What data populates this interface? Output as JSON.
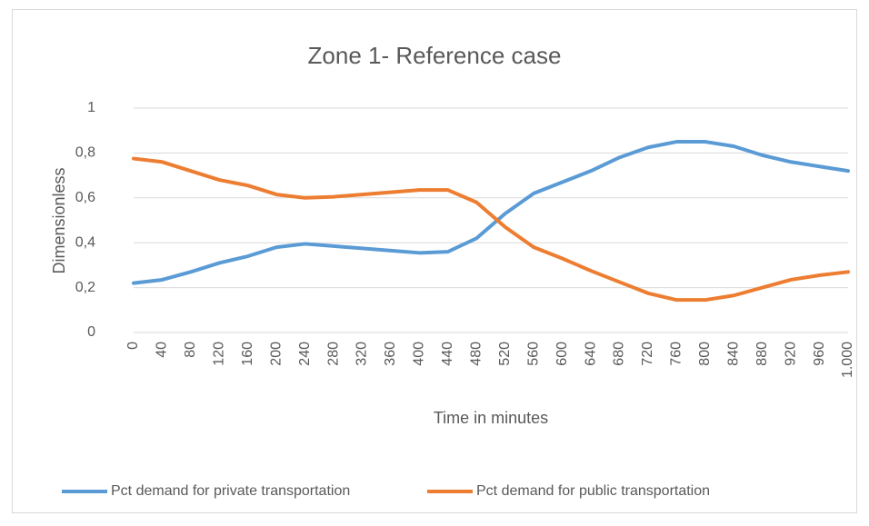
{
  "chart_data": {
    "type": "line",
    "title": "Zone 1- Reference case",
    "x_label": "Time in minutes",
    "y_label": "Dimensionless",
    "x": [
      0,
      40,
      80,
      120,
      160,
      200,
      240,
      280,
      320,
      360,
      400,
      440,
      480,
      520,
      560,
      600,
      640,
      680,
      720,
      760,
      800,
      840,
      880,
      920,
      960,
      1000
    ],
    "series": [
      {
        "name": "Pct demand for private transportation",
        "color": "#5b9bd5",
        "values": [
          0.22,
          0.235,
          0.27,
          0.31,
          0.34,
          0.38,
          0.395,
          0.385,
          0.375,
          0.365,
          0.355,
          0.36,
          0.42,
          0.53,
          0.62,
          0.67,
          0.72,
          0.78,
          0.825,
          0.85,
          0.85,
          0.83,
          0.79,
          0.76,
          0.74,
          0.72
        ]
      },
      {
        "name": "Pct demand for public transportation",
        "color": "#ed7d31",
        "values": [
          0.775,
          0.76,
          0.72,
          0.68,
          0.655,
          0.615,
          0.6,
          0.605,
          0.615,
          0.625,
          0.635,
          0.635,
          0.58,
          0.47,
          0.38,
          0.33,
          0.275,
          0.225,
          0.175,
          0.145,
          0.145,
          0.165,
          0.2,
          0.235,
          0.255,
          0.27
        ]
      }
    ],
    "xlim": [
      0,
      1000
    ],
    "xticks": [
      0,
      40,
      80,
      120,
      160,
      200,
      240,
      280,
      320,
      360,
      400,
      440,
      480,
      520,
      560,
      600,
      640,
      680,
      720,
      760,
      800,
      840,
      880,
      920,
      960,
      {
        "value": 1000,
        "label": "1.000"
      }
    ],
    "ylim": [
      0,
      1
    ],
    "yticks": [
      0,
      {
        "value": 0.2,
        "label": "0,2"
      },
      {
        "value": 0.4,
        "label": "0,4"
      },
      {
        "value": 0.6,
        "label": "0,6"
      },
      {
        "value": 0.8,
        "label": "0,8"
      },
      1
    ],
    "grid": true,
    "legend": "bottom"
  }
}
